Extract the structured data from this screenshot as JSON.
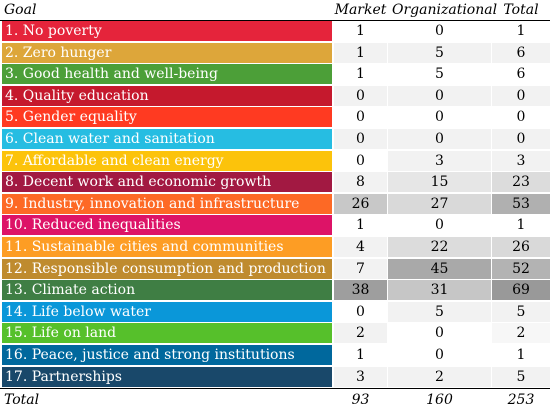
{
  "headers": {
    "goal": "Goal",
    "market": "Market",
    "organizational": "Organizational",
    "total": "Total"
  },
  "rows": [
    {
      "goal": "1. No poverty",
      "market": "1",
      "organizational": "0",
      "total": "1",
      "color": "#E5243B",
      "shade": [
        "#ffffff",
        "#ffffff",
        "#ffffff"
      ]
    },
    {
      "goal": "2. Zero hunger",
      "market": "1",
      "organizational": "5",
      "total": "6",
      "color": "#DDA63A",
      "shade": [
        "#f2f2f2",
        "#f2f2f2",
        "#f2f2f2"
      ]
    },
    {
      "goal": "3. Good health and well-being",
      "market": "1",
      "organizational": "5",
      "total": "6",
      "color": "#4C9F38",
      "shade": [
        "#ffffff",
        "#ffffff",
        "#ffffff"
      ]
    },
    {
      "goal": "4. Quality education",
      "market": "0",
      "organizational": "0",
      "total": "0",
      "color": "#C5192D",
      "shade": [
        "#f2f2f2",
        "#f2f2f2",
        "#f2f2f2"
      ]
    },
    {
      "goal": "5. Gender equality",
      "market": "0",
      "organizational": "0",
      "total": "0",
      "color": "#FF3A21",
      "shade": [
        "#ffffff",
        "#ffffff",
        "#ffffff"
      ]
    },
    {
      "goal": "6. Clean water and sanitation",
      "market": "0",
      "organizational": "0",
      "total": "0",
      "color": "#26BDE2",
      "shade": [
        "#f2f2f2",
        "#f2f2f2",
        "#f2f2f2"
      ]
    },
    {
      "goal": "7. Affordable and clean energy",
      "market": "0",
      "organizational": "3",
      "total": "3",
      "color": "#FCC30B",
      "shade": [
        "#ffffff",
        "#f2f2f2",
        "#f2f2f2"
      ]
    },
    {
      "goal": "8. Decent work and economic growth",
      "market": "8",
      "organizational": "15",
      "total": "23",
      "color": "#A21942",
      "shade": [
        "#f2f2f2",
        "#e6e6e6",
        "#dcdcdc"
      ]
    },
    {
      "goal": "9. Industry, innovation and infrastructure",
      "market": "26",
      "organizational": "27",
      "total": "53",
      "color": "#FD6925",
      "shade": [
        "#c8c8c8",
        "#d9d9d9",
        "#b0b0b0"
      ]
    },
    {
      "goal": "10. Reduced inequalities",
      "market": "1",
      "organizational": "0",
      "total": "1",
      "color": "#DD1367",
      "shade": [
        "#ffffff",
        "#ffffff",
        "#ffffff"
      ]
    },
    {
      "goal": "11. Sustainable cities and communities",
      "market": "4",
      "organizational": "22",
      "total": "26",
      "color": "#FD9D24",
      "shade": [
        "#f2f2f2",
        "#dcdcdc",
        "#d9d9d9"
      ]
    },
    {
      "goal": "12. Responsible consumption and production",
      "market": "7",
      "organizational": "45",
      "total": "52",
      "color": "#BF8B2E",
      "shade": [
        "#f2f2f2",
        "#a9a9a9",
        "#b3b3b3"
      ]
    },
    {
      "goal": "13. Climate action",
      "market": "38",
      "organizational": "31",
      "total": "69",
      "color": "#3F7E44",
      "shade": [
        "#9e9e9e",
        "#c6c6c6",
        "#999999"
      ]
    },
    {
      "goal": "14. Life below water",
      "market": "0",
      "organizational": "5",
      "total": "5",
      "color": "#0A97D9",
      "shade": [
        "#ffffff",
        "#f2f2f2",
        "#f2f2f2"
      ]
    },
    {
      "goal": "15. Life on land",
      "market": "2",
      "organizational": "0",
      "total": "2",
      "color": "#56C02B",
      "shade": [
        "#f2f2f2",
        "#ffffff",
        "#f7f7f7"
      ]
    },
    {
      "goal": "16. Peace, justice and strong institutions",
      "market": "1",
      "organizational": "0",
      "total": "1",
      "color": "#00689D",
      "shade": [
        "#ffffff",
        "#ffffff",
        "#ffffff"
      ]
    },
    {
      "goal": "17. Partnerships",
      "market": "3",
      "organizational": "2",
      "total": "5",
      "color": "#19486A",
      "shade": [
        "#f2f2f2",
        "#f2f2f2",
        "#f2f2f2"
      ]
    }
  ],
  "totals": {
    "label": "Total",
    "market": "93",
    "organizational": "160",
    "total": "253"
  }
}
